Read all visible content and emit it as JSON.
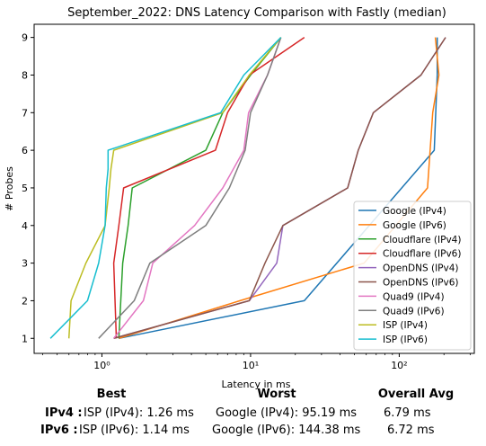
{
  "chart_data": {
    "type": "line",
    "title": "September_2022: DNS Latency Comparison with Fastly (median)",
    "xlabel": "Latency in ms",
    "ylabel": "# Probes",
    "xscale": "log",
    "xlim": [
      0.35,
      320
    ],
    "ylim": [
      0.6,
      9.35
    ],
    "x_ticks": [
      1,
      10,
      100
    ],
    "x_tick_labels": [
      "10⁰",
      "10¹",
      "10²"
    ],
    "y_ticks": [
      1,
      2,
      3,
      4,
      5,
      6,
      7,
      8,
      9
    ],
    "legend_position": "lower-right",
    "grid": false,
    "series": [
      {
        "name": "Google (IPv4)",
        "color": "#1f77b4",
        "x": [
          1.3,
          23,
          172,
          180,
          180
        ],
        "y": [
          1,
          2,
          6,
          8,
          9
        ]
      },
      {
        "name": "Google (IPv6)",
        "color": "#ff7f0e",
        "x": [
          1.3,
          8.5,
          58,
          155,
          168,
          185,
          175
        ],
        "y": [
          1,
          2,
          3,
          5,
          7,
          8,
          9
        ]
      },
      {
        "name": "Cloudflare (IPv4)",
        "color": "#2ca02c",
        "x": [
          1.3,
          1.38,
          1.5,
          1.6,
          5.0,
          6.5,
          10,
          16
        ],
        "y": [
          1,
          3,
          4,
          5,
          6,
          7,
          8,
          9
        ]
      },
      {
        "name": "Cloudflare (IPv6)",
        "color": "#d62728",
        "x": [
          1.25,
          1.2,
          1.3,
          1.4,
          5.8,
          7.0,
          9.8,
          23
        ],
        "y": [
          1,
          3,
          4,
          5,
          6,
          7,
          8,
          9
        ]
      },
      {
        "name": "OpenDNS (IPv4)",
        "color": "#9467bd",
        "x": [
          1.2,
          9.8,
          15,
          16.5,
          45,
          53,
          67,
          140,
          205
        ],
        "y": [
          1,
          2,
          3,
          4,
          5,
          6,
          7,
          8,
          9
        ]
      },
      {
        "name": "OpenDNS (IPv6)",
        "color": "#8c564b",
        "x": [
          1.2,
          9.8,
          12.5,
          16.5,
          45,
          53,
          67,
          140,
          205
        ],
        "y": [
          1,
          2,
          3,
          4,
          5,
          6,
          7,
          8,
          9
        ]
      },
      {
        "name": "Quad9 (IPv4)",
        "color": "#e377c2",
        "x": [
          1.2,
          1.9,
          2.2,
          4.2,
          6.5,
          9.0,
          9.7,
          13,
          16
        ],
        "y": [
          1,
          2,
          3,
          4,
          5,
          6,
          7,
          8,
          9
        ]
      },
      {
        "name": "Quad9 (IPv6)",
        "color": "#7f7f7f",
        "x": [
          0.95,
          1.65,
          2.1,
          5.0,
          7.2,
          9.2,
          10,
          13,
          16
        ],
        "y": [
          1,
          2,
          3,
          4,
          5,
          6,
          7,
          8,
          9
        ]
      },
      {
        "name": "ISP (IPv4)",
        "color": "#bcbd22",
        "x": [
          0.6,
          0.62,
          0.78,
          1.05,
          1.12,
          1.15,
          1.2,
          6.5,
          9.8,
          16
        ],
        "y": [
          1,
          2,
          3,
          4,
          5,
          5.5,
          6,
          7,
          8,
          9
        ]
      },
      {
        "name": "ISP (IPv6)",
        "color": "#17becf",
        "x": [
          0.45,
          0.8,
          0.95,
          1.05,
          1.07,
          1.1,
          1.1,
          6.3,
          9.0,
          16
        ],
        "y": [
          1,
          2,
          3,
          4,
          5,
          5.5,
          6,
          7,
          8,
          9
        ]
      }
    ]
  },
  "stats": {
    "best_header": "Best",
    "worst_header": "Worst",
    "avg_header": "Overall Avg",
    "ipv4": {
      "label": "IPv4 :",
      "best": "ISP (IPv4): 1.26 ms",
      "worst": "Google (IPv4): 95.19 ms",
      "avg": "6.79 ms"
    },
    "ipv6": {
      "label": "IPv6 :",
      "best": "ISP (IPv6): 1.14 ms",
      "worst": "Google (IPv6): 144.38 ms",
      "avg": "6.72 ms"
    }
  }
}
